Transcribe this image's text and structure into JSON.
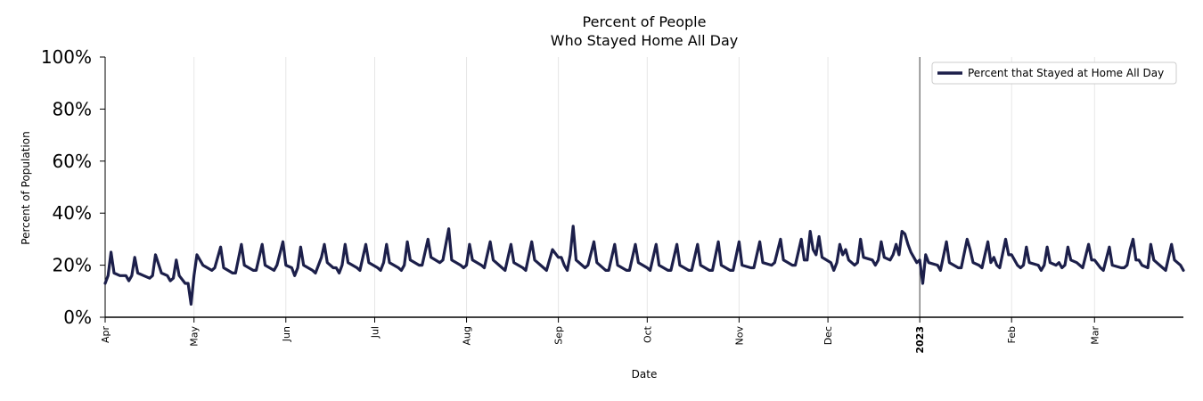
{
  "chart_data": {
    "type": "line",
    "title": [
      "Percent of People",
      "Who Stayed Home All Day"
    ],
    "xlabel": "Date",
    "ylabel": "Percent of Population",
    "ylim": [
      0,
      100
    ],
    "y_ticks": [
      "0%",
      "20%",
      "40%",
      "60%",
      "80%",
      "100%"
    ],
    "x_range": [
      "2022-04-01",
      "2023-03-31"
    ],
    "x_ticks": [
      {
        "date": "2022-04-01",
        "label": "Apr"
      },
      {
        "date": "2022-05-01",
        "label": "May"
      },
      {
        "date": "2022-06-01",
        "label": "Jun"
      },
      {
        "date": "2022-07-01",
        "label": "Jul"
      },
      {
        "date": "2022-08-01",
        "label": "Aug"
      },
      {
        "date": "2022-09-01",
        "label": "Sep"
      },
      {
        "date": "2022-10-01",
        "label": "Oct"
      },
      {
        "date": "2022-11-01",
        "label": "Nov"
      },
      {
        "date": "2022-12-01",
        "label": "Dec"
      },
      {
        "date": "2023-01-01",
        "label": "2023",
        "bold": true
      },
      {
        "date": "2023-02-01",
        "label": "Feb"
      },
      {
        "date": "2023-03-01",
        "label": "Mar"
      }
    ],
    "vertical_marker": "2023-01-01",
    "grid": "vertical",
    "legend_position": "top-right",
    "series": [
      {
        "name": "Percent that Stayed at Home All Day",
        "color": "#1c1f4a",
        "points": [
          [
            "2022-04-01",
            13
          ],
          [
            "2022-04-02",
            16
          ],
          [
            "2022-04-03",
            25
          ],
          [
            "2022-04-04",
            17
          ],
          [
            "2022-04-06",
            16
          ],
          [
            "2022-04-08",
            16
          ],
          [
            "2022-04-09",
            14
          ],
          [
            "2022-04-10",
            16
          ],
          [
            "2022-04-11",
            23
          ],
          [
            "2022-04-12",
            17
          ],
          [
            "2022-04-14",
            16
          ],
          [
            "2022-04-16",
            15
          ],
          [
            "2022-04-17",
            16
          ],
          [
            "2022-04-18",
            24
          ],
          [
            "2022-04-20",
            17
          ],
          [
            "2022-04-22",
            16
          ],
          [
            "2022-04-23",
            14
          ],
          [
            "2022-04-24",
            15
          ],
          [
            "2022-04-25",
            22
          ],
          [
            "2022-04-26",
            16
          ],
          [
            "2022-04-28",
            13
          ],
          [
            "2022-04-29",
            13
          ],
          [
            "2022-04-30",
            5
          ],
          [
            "2022-05-01",
            16
          ],
          [
            "2022-05-02",
            24
          ],
          [
            "2022-05-04",
            20
          ],
          [
            "2022-05-07",
            18
          ],
          [
            "2022-05-08",
            19
          ],
          [
            "2022-05-10",
            27
          ],
          [
            "2022-05-11",
            19
          ],
          [
            "2022-05-14",
            17
          ],
          [
            "2022-05-15",
            17
          ],
          [
            "2022-05-17",
            28
          ],
          [
            "2022-05-18",
            20
          ],
          [
            "2022-05-21",
            18
          ],
          [
            "2022-05-22",
            18
          ],
          [
            "2022-05-24",
            28
          ],
          [
            "2022-05-25",
            20
          ],
          [
            "2022-05-28",
            18
          ],
          [
            "2022-05-29",
            20
          ],
          [
            "2022-05-31",
            29
          ],
          [
            "2022-06-01",
            20
          ],
          [
            "2022-06-03",
            19
          ],
          [
            "2022-06-04",
            16
          ],
          [
            "2022-06-05",
            19
          ],
          [
            "2022-06-06",
            27
          ],
          [
            "2022-06-07",
            20
          ],
          [
            "2022-06-10",
            18
          ],
          [
            "2022-06-11",
            17
          ],
          [
            "2022-06-13",
            23
          ],
          [
            "2022-06-14",
            28
          ],
          [
            "2022-06-15",
            21
          ],
          [
            "2022-06-17",
            19
          ],
          [
            "2022-06-18",
            19
          ],
          [
            "2022-06-19",
            17
          ],
          [
            "2022-06-20",
            20
          ],
          [
            "2022-06-21",
            28
          ],
          [
            "2022-06-22",
            21
          ],
          [
            "2022-06-25",
            19
          ],
          [
            "2022-06-26",
            18
          ],
          [
            "2022-06-28",
            28
          ],
          [
            "2022-06-29",
            21
          ],
          [
            "2022-07-02",
            19
          ],
          [
            "2022-07-03",
            18
          ],
          [
            "2022-07-04",
            21
          ],
          [
            "2022-07-05",
            28
          ],
          [
            "2022-07-06",
            21
          ],
          [
            "2022-07-09",
            19
          ],
          [
            "2022-07-10",
            18
          ],
          [
            "2022-07-11",
            20
          ],
          [
            "2022-07-12",
            29
          ],
          [
            "2022-07-13",
            22
          ],
          [
            "2022-07-16",
            20
          ],
          [
            "2022-07-17",
            20
          ],
          [
            "2022-07-19",
            30
          ],
          [
            "2022-07-20",
            23
          ],
          [
            "2022-07-23",
            21
          ],
          [
            "2022-07-24",
            22
          ],
          [
            "2022-07-26",
            34
          ],
          [
            "2022-07-27",
            22
          ],
          [
            "2022-07-30",
            20
          ],
          [
            "2022-07-31",
            19
          ],
          [
            "2022-08-01",
            20
          ],
          [
            "2022-08-02",
            28
          ],
          [
            "2022-08-03",
            22
          ],
          [
            "2022-08-06",
            20
          ],
          [
            "2022-08-07",
            19
          ],
          [
            "2022-08-09",
            29
          ],
          [
            "2022-08-10",
            22
          ],
          [
            "2022-08-13",
            19
          ],
          [
            "2022-08-14",
            18
          ],
          [
            "2022-08-16",
            28
          ],
          [
            "2022-08-17",
            21
          ],
          [
            "2022-08-20",
            19
          ],
          [
            "2022-08-21",
            18
          ],
          [
            "2022-08-23",
            29
          ],
          [
            "2022-08-24",
            22
          ],
          [
            "2022-08-27",
            19
          ],
          [
            "2022-08-28",
            18
          ],
          [
            "2022-08-30",
            26
          ],
          [
            "2022-09-01",
            23
          ],
          [
            "2022-09-02",
            23
          ],
          [
            "2022-09-03",
            20
          ],
          [
            "2022-09-04",
            18
          ],
          [
            "2022-09-05",
            24
          ],
          [
            "2022-09-06",
            35
          ],
          [
            "2022-09-07",
            22
          ],
          [
            "2022-09-10",
            19
          ],
          [
            "2022-09-11",
            20
          ],
          [
            "2022-09-13",
            29
          ],
          [
            "2022-09-14",
            21
          ],
          [
            "2022-09-17",
            18
          ],
          [
            "2022-09-18",
            18
          ],
          [
            "2022-09-20",
            28
          ],
          [
            "2022-09-21",
            20
          ],
          [
            "2022-09-24",
            18
          ],
          [
            "2022-09-25",
            18
          ],
          [
            "2022-09-27",
            28
          ],
          [
            "2022-09-28",
            21
          ],
          [
            "2022-10-01",
            19
          ],
          [
            "2022-10-02",
            18
          ],
          [
            "2022-10-04",
            28
          ],
          [
            "2022-10-05",
            20
          ],
          [
            "2022-10-08",
            18
          ],
          [
            "2022-10-09",
            18
          ],
          [
            "2022-10-11",
            28
          ],
          [
            "2022-10-12",
            20
          ],
          [
            "2022-10-15",
            18
          ],
          [
            "2022-10-16",
            18
          ],
          [
            "2022-10-18",
            28
          ],
          [
            "2022-10-19",
            20
          ],
          [
            "2022-10-22",
            18
          ],
          [
            "2022-10-23",
            18
          ],
          [
            "2022-10-25",
            29
          ],
          [
            "2022-10-26",
            20
          ],
          [
            "2022-10-29",
            18
          ],
          [
            "2022-10-30",
            18
          ],
          [
            "2022-11-01",
            29
          ],
          [
            "2022-11-02",
            20
          ],
          [
            "2022-11-05",
            19
          ],
          [
            "2022-11-06",
            19
          ],
          [
            "2022-11-08",
            29
          ],
          [
            "2022-11-09",
            21
          ],
          [
            "2022-11-12",
            20
          ],
          [
            "2022-11-13",
            21
          ],
          [
            "2022-11-15",
            30
          ],
          [
            "2022-11-16",
            22
          ],
          [
            "2022-11-19",
            20
          ],
          [
            "2022-11-20",
            20
          ],
          [
            "2022-11-22",
            30
          ],
          [
            "2022-11-23",
            22
          ],
          [
            "2022-11-24",
            22
          ],
          [
            "2022-11-25",
            33
          ],
          [
            "2022-11-26",
            26
          ],
          [
            "2022-11-27",
            24
          ],
          [
            "2022-11-28",
            31
          ],
          [
            "2022-11-29",
            23
          ],
          [
            "2022-12-02",
            21
          ],
          [
            "2022-12-03",
            18
          ],
          [
            "2022-12-04",
            21
          ],
          [
            "2022-12-05",
            28
          ],
          [
            "2022-12-06",
            24
          ],
          [
            "2022-12-07",
            26
          ],
          [
            "2022-12-08",
            22
          ],
          [
            "2022-12-10",
            20
          ],
          [
            "2022-12-11",
            21
          ],
          [
            "2022-12-12",
            30
          ],
          [
            "2022-12-13",
            23
          ],
          [
            "2022-12-16",
            22
          ],
          [
            "2022-12-17",
            20
          ],
          [
            "2022-12-18",
            22
          ],
          [
            "2022-12-19",
            29
          ],
          [
            "2022-12-20",
            23
          ],
          [
            "2022-12-22",
            22
          ],
          [
            "2022-12-23",
            24
          ],
          [
            "2022-12-24",
            28
          ],
          [
            "2022-12-25",
            24
          ],
          [
            "2022-12-26",
            33
          ],
          [
            "2022-12-27",
            32
          ],
          [
            "2022-12-28",
            28
          ],
          [
            "2022-12-29",
            25
          ],
          [
            "2022-12-30",
            23
          ],
          [
            "2022-12-31",
            21
          ],
          [
            "2023-01-01",
            22
          ],
          [
            "2023-01-02",
            13
          ],
          [
            "2023-01-03",
            24
          ],
          [
            "2023-01-04",
            21
          ],
          [
            "2023-01-07",
            20
          ],
          [
            "2023-01-08",
            18
          ],
          [
            "2023-01-10",
            29
          ],
          [
            "2023-01-11",
            21
          ],
          [
            "2023-01-14",
            19
          ],
          [
            "2023-01-15",
            19
          ],
          [
            "2023-01-17",
            30
          ],
          [
            "2023-01-18",
            26
          ],
          [
            "2023-01-19",
            21
          ],
          [
            "2023-01-21",
            20
          ],
          [
            "2023-01-22",
            19
          ],
          [
            "2023-01-24",
            29
          ],
          [
            "2023-01-25",
            21
          ],
          [
            "2023-01-26",
            23
          ],
          [
            "2023-01-27",
            20
          ],
          [
            "2023-01-28",
            19
          ],
          [
            "2023-01-30",
            30
          ],
          [
            "2023-01-31",
            24
          ],
          [
            "2023-02-01",
            24
          ],
          [
            "2023-02-03",
            20
          ],
          [
            "2023-02-04",
            19
          ],
          [
            "2023-02-05",
            20
          ],
          [
            "2023-02-06",
            27
          ],
          [
            "2023-02-07",
            21
          ],
          [
            "2023-02-10",
            20
          ],
          [
            "2023-02-11",
            18
          ],
          [
            "2023-02-12",
            20
          ],
          [
            "2023-02-13",
            27
          ],
          [
            "2023-02-14",
            21
          ],
          [
            "2023-02-16",
            20
          ],
          [
            "2023-02-17",
            21
          ],
          [
            "2023-02-18",
            19
          ],
          [
            "2023-02-19",
            20
          ],
          [
            "2023-02-20",
            27
          ],
          [
            "2023-02-21",
            22
          ],
          [
            "2023-02-23",
            21
          ],
          [
            "2023-02-25",
            19
          ],
          [
            "2023-02-27",
            28
          ],
          [
            "2023-02-28",
            22
          ],
          [
            "2023-03-01",
            22
          ],
          [
            "2023-03-03",
            19
          ],
          [
            "2023-03-04",
            18
          ],
          [
            "2023-03-06",
            27
          ],
          [
            "2023-03-07",
            20
          ],
          [
            "2023-03-10",
            19
          ],
          [
            "2023-03-11",
            19
          ],
          [
            "2023-03-12",
            20
          ],
          [
            "2023-03-13",
            26
          ],
          [
            "2023-03-14",
            30
          ],
          [
            "2023-03-15",
            22
          ],
          [
            "2023-03-16",
            22
          ],
          [
            "2023-03-17",
            20
          ],
          [
            "2023-03-19",
            19
          ],
          [
            "2023-03-20",
            28
          ],
          [
            "2023-03-21",
            22
          ],
          [
            "2023-03-24",
            19
          ],
          [
            "2023-03-25",
            18
          ],
          [
            "2023-03-27",
            28
          ],
          [
            "2023-03-28",
            22
          ],
          [
            "2023-03-30",
            20
          ],
          [
            "2023-03-31",
            18
          ]
        ]
      }
    ]
  }
}
